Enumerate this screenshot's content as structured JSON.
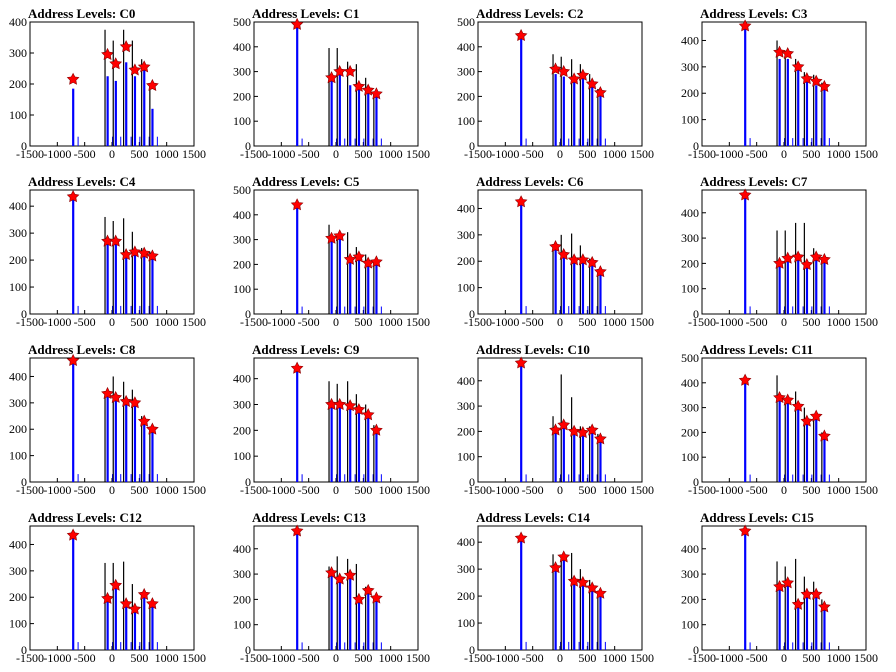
{
  "chart_data": [
    {
      "type": "bar",
      "title": "Address Levels: C0",
      "xticks": [
        "-1500",
        "-1000",
        "-500",
        "0",
        "500",
        "1000",
        "1500"
      ],
      "yticks": [
        "0",
        "100",
        "200",
        "300",
        "400"
      ],
      "xlim": [
        -1500,
        1500
      ],
      "ylim": [
        0,
        400
      ],
      "peaks": [
        {
          "x": -730,
          "black": 0,
          "blue": 185,
          "marker": 215
        },
        {
          "x": -100,
          "black": 375,
          "blue": 225,
          "marker": 295
        },
        {
          "x": 50,
          "black": 340,
          "blue": 210,
          "marker": 265
        },
        {
          "x": 240,
          "black": 375,
          "blue": 270,
          "marker": 320
        },
        {
          "x": 400,
          "black": 340,
          "blue": 225,
          "marker": 245
        },
        {
          "x": 570,
          "black": 280,
          "blue": 250,
          "marker": 255
        },
        {
          "x": 720,
          "black": 200,
          "blue": 120,
          "marker": 195
        }
      ]
    },
    {
      "type": "bar",
      "title": "Address Levels: C1",
      "xticks": [
        "-1500",
        "-1000",
        "-500",
        "0",
        "500",
        "1000",
        "1500"
      ],
      "yticks": [
        "0",
        "100",
        "200",
        "300",
        "400",
        "500"
      ],
      "xlim": [
        -1500,
        1500
      ],
      "ylim": [
        0,
        500
      ],
      "peaks": [
        {
          "x": -730,
          "black": 0,
          "blue": 480,
          "marker": 490
        },
        {
          "x": -100,
          "black": 395,
          "blue": 270,
          "marker": 275
        },
        {
          "x": 50,
          "black": 395,
          "blue": 300,
          "marker": 300
        },
        {
          "x": 240,
          "black": 340,
          "blue": 245,
          "marker": 300
        },
        {
          "x": 400,
          "black": 330,
          "blue": 240,
          "marker": 240
        },
        {
          "x": 570,
          "black": 275,
          "blue": 225,
          "marker": 225
        },
        {
          "x": 720,
          "black": 220,
          "blue": 210,
          "marker": 210
        }
      ]
    },
    {
      "type": "bar",
      "title": "Address Levels: C2",
      "xticks": [
        "-1500",
        "-1000",
        "-500",
        "0",
        "500",
        "1000",
        "1500"
      ],
      "yticks": [
        "0",
        "100",
        "200",
        "300",
        "400",
        "500"
      ],
      "xlim": [
        -1500,
        1500
      ],
      "ylim": [
        0,
        500
      ],
      "peaks": [
        {
          "x": -730,
          "black": 0,
          "blue": 440,
          "marker": 445
        },
        {
          "x": -100,
          "black": 370,
          "blue": 290,
          "marker": 310
        },
        {
          "x": 50,
          "black": 360,
          "blue": 280,
          "marker": 300
        },
        {
          "x": 240,
          "black": 350,
          "blue": 260,
          "marker": 270
        },
        {
          "x": 400,
          "black": 330,
          "blue": 280,
          "marker": 285
        },
        {
          "x": 570,
          "black": 290,
          "blue": 245,
          "marker": 250
        },
        {
          "x": 720,
          "black": 230,
          "blue": 210,
          "marker": 215
        }
      ]
    },
    {
      "type": "bar",
      "title": "Address Levels: C3",
      "xticks": [
        "-1500",
        "-1000",
        "-500",
        "0",
        "500",
        "1000",
        "1500"
      ],
      "yticks": [
        "0",
        "100",
        "200",
        "300",
        "400"
      ],
      "xlim": [
        -1500,
        1500
      ],
      "ylim": [
        0,
        470
      ],
      "peaks": [
        {
          "x": -730,
          "black": 0,
          "blue": 445,
          "marker": 455
        },
        {
          "x": -100,
          "black": 400,
          "blue": 330,
          "marker": 355
        },
        {
          "x": 50,
          "black": 340,
          "blue": 330,
          "marker": 350
        },
        {
          "x": 240,
          "black": 330,
          "blue": 300,
          "marker": 300
        },
        {
          "x": 400,
          "black": 280,
          "blue": 250,
          "marker": 255
        },
        {
          "x": 570,
          "black": 270,
          "blue": 230,
          "marker": 245
        },
        {
          "x": 720,
          "black": 240,
          "blue": 225,
          "marker": 225
        }
      ]
    },
    {
      "type": "bar",
      "title": "Address Levels: C4",
      "xticks": [
        "-1500",
        "-1000",
        "-500",
        "0",
        "500",
        "1000",
        "1500"
      ],
      "yticks": [
        "0",
        "100",
        "200",
        "300",
        "400"
      ],
      "xlim": [
        -1500,
        1500
      ],
      "ylim": [
        0,
        460
      ],
      "peaks": [
        {
          "x": -730,
          "black": 0,
          "blue": 430,
          "marker": 435
        },
        {
          "x": -100,
          "black": 360,
          "blue": 265,
          "marker": 270
        },
        {
          "x": 50,
          "black": 345,
          "blue": 270,
          "marker": 270
        },
        {
          "x": 240,
          "black": 355,
          "blue": 215,
          "marker": 220
        },
        {
          "x": 400,
          "black": 305,
          "blue": 225,
          "marker": 230
        },
        {
          "x": 570,
          "black": 245,
          "blue": 215,
          "marker": 225
        },
        {
          "x": 720,
          "black": 230,
          "blue": 210,
          "marker": 215
        }
      ]
    },
    {
      "type": "bar",
      "title": "Address Levels: C5",
      "xticks": [
        "-1500",
        "-1000",
        "-500",
        "0",
        "500",
        "1000",
        "1500"
      ],
      "yticks": [
        "0",
        "100",
        "200",
        "300",
        "400",
        "500"
      ],
      "xlim": [
        -1500,
        1500
      ],
      "ylim": [
        0,
        500
      ],
      "peaks": [
        {
          "x": -730,
          "black": 0,
          "blue": 430,
          "marker": 440
        },
        {
          "x": -100,
          "black": 360,
          "blue": 300,
          "marker": 305
        },
        {
          "x": 50,
          "black": 310,
          "blue": 305,
          "marker": 315
        },
        {
          "x": 240,
          "black": 330,
          "blue": 220,
          "marker": 220
        },
        {
          "x": 400,
          "black": 270,
          "blue": 220,
          "marker": 230
        },
        {
          "x": 570,
          "black": 240,
          "blue": 200,
          "marker": 205
        },
        {
          "x": 720,
          "black": 215,
          "blue": 205,
          "marker": 210
        }
      ]
    },
    {
      "type": "bar",
      "title": "Address Levels: C6",
      "xticks": [
        "-1500",
        "-1000",
        "-500",
        "0",
        "500",
        "1000",
        "1500"
      ],
      "yticks": [
        "0",
        "100",
        "200",
        "300",
        "400"
      ],
      "xlim": [
        -1500,
        1500
      ],
      "ylim": [
        0,
        470
      ],
      "peaks": [
        {
          "x": -730,
          "black": 0,
          "blue": 420,
          "marker": 425
        },
        {
          "x": -100,
          "black": 265,
          "blue": 250,
          "marker": 255
        },
        {
          "x": 50,
          "black": 300,
          "blue": 225,
          "marker": 225
        },
        {
          "x": 240,
          "black": 305,
          "blue": 200,
          "marker": 205
        },
        {
          "x": 400,
          "black": 260,
          "blue": 200,
          "marker": 205
        },
        {
          "x": 570,
          "black": 210,
          "blue": 195,
          "marker": 195
        },
        {
          "x": 720,
          "black": 170,
          "blue": 155,
          "marker": 160
        }
      ]
    },
    {
      "type": "bar",
      "title": "Address Levels: C7",
      "xticks": [
        "-1500",
        "-1000",
        "-500",
        "0",
        "500",
        "1000",
        "1500"
      ],
      "yticks": [
        "0",
        "100",
        "200",
        "300",
        "400"
      ],
      "xlim": [
        -1500,
        1500
      ],
      "ylim": [
        0,
        490
      ],
      "peaks": [
        {
          "x": -730,
          "black": 0,
          "blue": 460,
          "marker": 470
        },
        {
          "x": -100,
          "black": 330,
          "blue": 200,
          "marker": 200
        },
        {
          "x": 50,
          "black": 330,
          "blue": 220,
          "marker": 220
        },
        {
          "x": 240,
          "black": 360,
          "blue": 220,
          "marker": 225
        },
        {
          "x": 400,
          "black": 360,
          "blue": 195,
          "marker": 195
        },
        {
          "x": 570,
          "black": 260,
          "blue": 220,
          "marker": 225
        },
        {
          "x": 720,
          "black": 225,
          "blue": 210,
          "marker": 215
        }
      ]
    },
    {
      "type": "bar",
      "title": "Address Levels: C8",
      "xticks": [
        "-1500",
        "-1000",
        "-500",
        "0",
        "500",
        "1000",
        "1500"
      ],
      "yticks": [
        "0",
        "100",
        "200",
        "300",
        "400"
      ],
      "xlim": [
        -1500,
        1500
      ],
      "ylim": [
        0,
        470
      ],
      "peaks": [
        {
          "x": -730,
          "black": 0,
          "blue": 450,
          "marker": 460
        },
        {
          "x": -100,
          "black": 340,
          "blue": 330,
          "marker": 335
        },
        {
          "x": 50,
          "black": 400,
          "blue": 310,
          "marker": 320
        },
        {
          "x": 240,
          "black": 380,
          "blue": 300,
          "marker": 305
        },
        {
          "x": 400,
          "black": 350,
          "blue": 300,
          "marker": 300
        },
        {
          "x": 570,
          "black": 250,
          "blue": 225,
          "marker": 230
        },
        {
          "x": 720,
          "black": 210,
          "blue": 200,
          "marker": 200
        }
      ]
    },
    {
      "type": "bar",
      "title": "Address Levels: C9",
      "xticks": [
        "-1500",
        "-1000",
        "-500",
        "0",
        "500",
        "1000",
        "1500"
      ],
      "yticks": [
        "0",
        "100",
        "200",
        "300",
        "400"
      ],
      "xlim": [
        -1500,
        1500
      ],
      "ylim": [
        0,
        480
      ],
      "peaks": [
        {
          "x": -730,
          "black": 0,
          "blue": 430,
          "marker": 440
        },
        {
          "x": -100,
          "black": 390,
          "blue": 300,
          "marker": 300
        },
        {
          "x": 50,
          "black": 380,
          "blue": 300,
          "marker": 300
        },
        {
          "x": 240,
          "black": 390,
          "blue": 290,
          "marker": 295
        },
        {
          "x": 400,
          "black": 340,
          "blue": 275,
          "marker": 280
        },
        {
          "x": 570,
          "black": 300,
          "blue": 250,
          "marker": 260
        },
        {
          "x": 720,
          "black": 220,
          "blue": 200,
          "marker": 200
        }
      ]
    },
    {
      "type": "bar",
      "title": "Address Levels: C10",
      "xticks": [
        "-1500",
        "-1000",
        "-500",
        "0",
        "500",
        "1000",
        "1500"
      ],
      "yticks": [
        "0",
        "100",
        "200",
        "300",
        "400"
      ],
      "xlim": [
        -1500,
        1500
      ],
      "ylim": [
        0,
        490
      ],
      "peaks": [
        {
          "x": -730,
          "black": 0,
          "blue": 460,
          "marker": 470
        },
        {
          "x": -100,
          "black": 260,
          "blue": 205,
          "marker": 205
        },
        {
          "x": 50,
          "black": 425,
          "blue": 225,
          "marker": 225
        },
        {
          "x": 240,
          "black": 335,
          "blue": 200,
          "marker": 200
        },
        {
          "x": 400,
          "black": 220,
          "blue": 195,
          "marker": 195
        },
        {
          "x": 570,
          "black": 220,
          "blue": 200,
          "marker": 205
        },
        {
          "x": 720,
          "black": 190,
          "blue": 165,
          "marker": 170
        }
      ]
    },
    {
      "type": "bar",
      "title": "Address Levels: C11",
      "xticks": [
        "-1500",
        "-1000",
        "-500",
        "0",
        "500",
        "1000",
        "1500"
      ],
      "yticks": [
        "0",
        "100",
        "200",
        "300",
        "400",
        "500"
      ],
      "xlim": [
        -1500,
        1500
      ],
      "ylim": [
        0,
        500
      ],
      "peaks": [
        {
          "x": -730,
          "black": 0,
          "blue": 400,
          "marker": 410
        },
        {
          "x": -100,
          "black": 430,
          "blue": 330,
          "marker": 340
        },
        {
          "x": 50,
          "black": 340,
          "blue": 325,
          "marker": 330
        },
        {
          "x": 240,
          "black": 365,
          "blue": 300,
          "marker": 305
        },
        {
          "x": 400,
          "black": 300,
          "blue": 240,
          "marker": 245
        },
        {
          "x": 570,
          "black": 270,
          "blue": 265,
          "marker": 265
        },
        {
          "x": 720,
          "black": 200,
          "blue": 185,
          "marker": 185
        }
      ]
    },
    {
      "type": "bar",
      "title": "Address Levels: C12",
      "xticks": [
        "-1500",
        "-1000",
        "-500",
        "0",
        "500",
        "1000",
        "1500"
      ],
      "yticks": [
        "0",
        "100",
        "200",
        "300",
        "400"
      ],
      "xlim": [
        -1500,
        1500
      ],
      "ylim": [
        0,
        470
      ],
      "peaks": [
        {
          "x": -730,
          "black": 0,
          "blue": 430,
          "marker": 435
        },
        {
          "x": -100,
          "black": 330,
          "blue": 190,
          "marker": 195
        },
        {
          "x": 50,
          "black": 330,
          "blue": 240,
          "marker": 245
        },
        {
          "x": 240,
          "black": 335,
          "blue": 175,
          "marker": 175
        },
        {
          "x": 400,
          "black": 250,
          "blue": 155,
          "marker": 155
        },
        {
          "x": 570,
          "black": 215,
          "blue": 205,
          "marker": 210
        },
        {
          "x": 720,
          "black": 180,
          "blue": 170,
          "marker": 175
        }
      ]
    },
    {
      "type": "bar",
      "title": "Address Levels: C13",
      "xticks": [
        "-1500",
        "-1000",
        "-500",
        "0",
        "500",
        "1000",
        "1500"
      ],
      "yticks": [
        "0",
        "100",
        "200",
        "300",
        "400"
      ],
      "xlim": [
        -1500,
        1500
      ],
      "ylim": [
        0,
        490
      ],
      "peaks": [
        {
          "x": -730,
          "black": 0,
          "blue": 460,
          "marker": 470
        },
        {
          "x": -100,
          "black": 330,
          "blue": 300,
          "marker": 305
        },
        {
          "x": 50,
          "black": 370,
          "blue": 280,
          "marker": 280
        },
        {
          "x": 240,
          "black": 360,
          "blue": 290,
          "marker": 295
        },
        {
          "x": 400,
          "black": 340,
          "blue": 195,
          "marker": 200
        },
        {
          "x": 570,
          "black": 250,
          "blue": 230,
          "marker": 235
        },
        {
          "x": 720,
          "black": 210,
          "blue": 200,
          "marker": 205
        }
      ]
    },
    {
      "type": "bar",
      "title": "Address Levels: C14",
      "xticks": [
        "-1500",
        "-1000",
        "-500",
        "0",
        "500",
        "1000",
        "1500"
      ],
      "yticks": [
        "0",
        "100",
        "200",
        "300",
        "400"
      ],
      "xlim": [
        -1500,
        1500
      ],
      "ylim": [
        0,
        460
      ],
      "peaks": [
        {
          "x": -730,
          "black": 0,
          "blue": 410,
          "marker": 415
        },
        {
          "x": -100,
          "black": 355,
          "blue": 300,
          "marker": 305
        },
        {
          "x": 50,
          "black": 350,
          "blue": 340,
          "marker": 345
        },
        {
          "x": 240,
          "black": 360,
          "blue": 250,
          "marker": 255
        },
        {
          "x": 400,
          "black": 300,
          "blue": 245,
          "marker": 250
        },
        {
          "x": 570,
          "black": 260,
          "blue": 225,
          "marker": 230
        },
        {
          "x": 720,
          "black": 220,
          "blue": 205,
          "marker": 210
        }
      ]
    },
    {
      "type": "bar",
      "title": "Address Levels: C15",
      "xticks": [
        "-1500",
        "-1000",
        "-500",
        "0",
        "500",
        "1000",
        "1500"
      ],
      "yticks": [
        "0",
        "100",
        "200",
        "300",
        "400"
      ],
      "xlim": [
        -1500,
        1500
      ],
      "ylim": [
        0,
        490
      ],
      "peaks": [
        {
          "x": -730,
          "black": 0,
          "blue": 460,
          "marker": 470
        },
        {
          "x": -100,
          "black": 350,
          "blue": 245,
          "marker": 250
        },
        {
          "x": 50,
          "black": 330,
          "blue": 265,
          "marker": 265
        },
        {
          "x": 240,
          "black": 360,
          "blue": 180,
          "marker": 180
        },
        {
          "x": 400,
          "black": 290,
          "blue": 220,
          "marker": 220
        },
        {
          "x": 570,
          "black": 270,
          "blue": 220,
          "marker": 220
        },
        {
          "x": 720,
          "black": 200,
          "blue": 165,
          "marker": 170
        }
      ]
    }
  ],
  "colors": {
    "histogram_outline": "#000000",
    "histogram_fill": "#0000ff",
    "marker": "#ff0000",
    "marker_outline": "#8b0000"
  }
}
